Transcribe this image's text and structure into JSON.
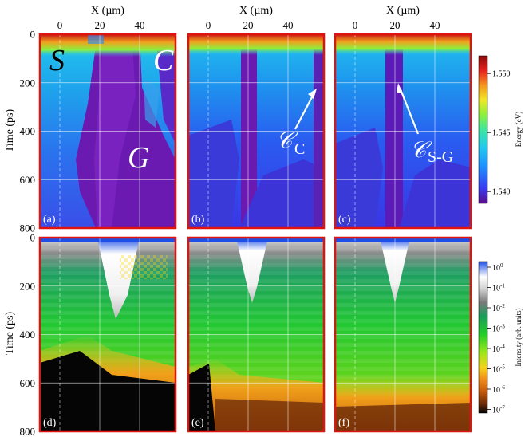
{
  "chart_data": [
    {
      "type": "heatmap",
      "panel_label": "(a)",
      "xlabel": "X (µm)",
      "ylabel": "Time (ps)",
      "x_ticks": [
        0,
        20,
        40
      ],
      "y_ticks": [
        0,
        200,
        400,
        600,
        800
      ],
      "ylim": [
        800,
        0
      ],
      "colorbar": {
        "label": "Energy (eV)",
        "ticks": [
          1.55,
          1.545,
          1.54
        ],
        "tick_labels": [
          "1.550",
          "1.545",
          "1.540"
        ],
        "colormap": "jet"
      },
      "annotations": [
        "S",
        "C",
        "G"
      ],
      "description_regions": [
        {
          "name": "S",
          "x_range": [
            -10,
            16
          ],
          "energy": 1.5425
        },
        {
          "name": "C",
          "x_range": [
            48,
            58
          ],
          "energy": 1.5425
        },
        {
          "name": "G",
          "x_range": [
            18,
            58
          ],
          "energy": 1.5398
        }
      ]
    },
    {
      "type": "heatmap",
      "panel_label": "(b)",
      "xlabel": "X (µm)",
      "x_ticks": [
        0,
        20,
        40
      ],
      "ylim": [
        800,
        0
      ],
      "annotations": [
        "𝒞",
        "C"
      ]
    },
    {
      "type": "heatmap",
      "panel_label": "(c)",
      "xlabel": "X (µm)",
      "x_ticks": [
        0,
        20,
        40
      ],
      "ylim": [
        800,
        0
      ],
      "annotations": [
        "𝒞",
        "S-G"
      ]
    },
    {
      "type": "heatmap",
      "panel_label": "(d)",
      "ylabel": "Time (ps)",
      "y_ticks": [
        0,
        200,
        400,
        600,
        800
      ],
      "ylim": [
        800,
        0
      ],
      "colorbar": {
        "label": "Intensity (arb. units)",
        "log_scale": true,
        "ticks": [
          0,
          -1,
          -2,
          -3,
          -4,
          -5,
          -6,
          -7
        ],
        "tick_labels": [
          "10",
          "10",
          "10",
          "10",
          "10",
          "10",
          "10",
          "10"
        ],
        "tick_exponents": [
          "0",
          "-1",
          "-2",
          "-3",
          "-4",
          "-5",
          "-6",
          "-7"
        ]
      }
    },
    {
      "type": "heatmap",
      "panel_label": "(e)",
      "ylim": [
        800,
        0
      ]
    },
    {
      "type": "heatmap",
      "panel_label": "(f)",
      "ylim": [
        800,
        0
      ]
    }
  ],
  "colors": {
    "frame": "#e0140f",
    "energy_scale": [
      "#5a0a8c",
      "#3a3af0",
      "#1e90ff",
      "#22c8ee",
      "#3ee6a0",
      "#8cf03c",
      "#f0e628",
      "#f5961e",
      "#e6231e",
      "#8c0a0a"
    ],
    "intensity_scale": [
      "#050505",
      "#6a2a08",
      "#c2570c",
      "#f08a1a",
      "#f5d21a",
      "#9ae61a",
      "#22cd28",
      "#1a9e5a",
      "#7a7a7a",
      "#d2d2d2",
      "#ffffff",
      "#1e50e6"
    ]
  }
}
